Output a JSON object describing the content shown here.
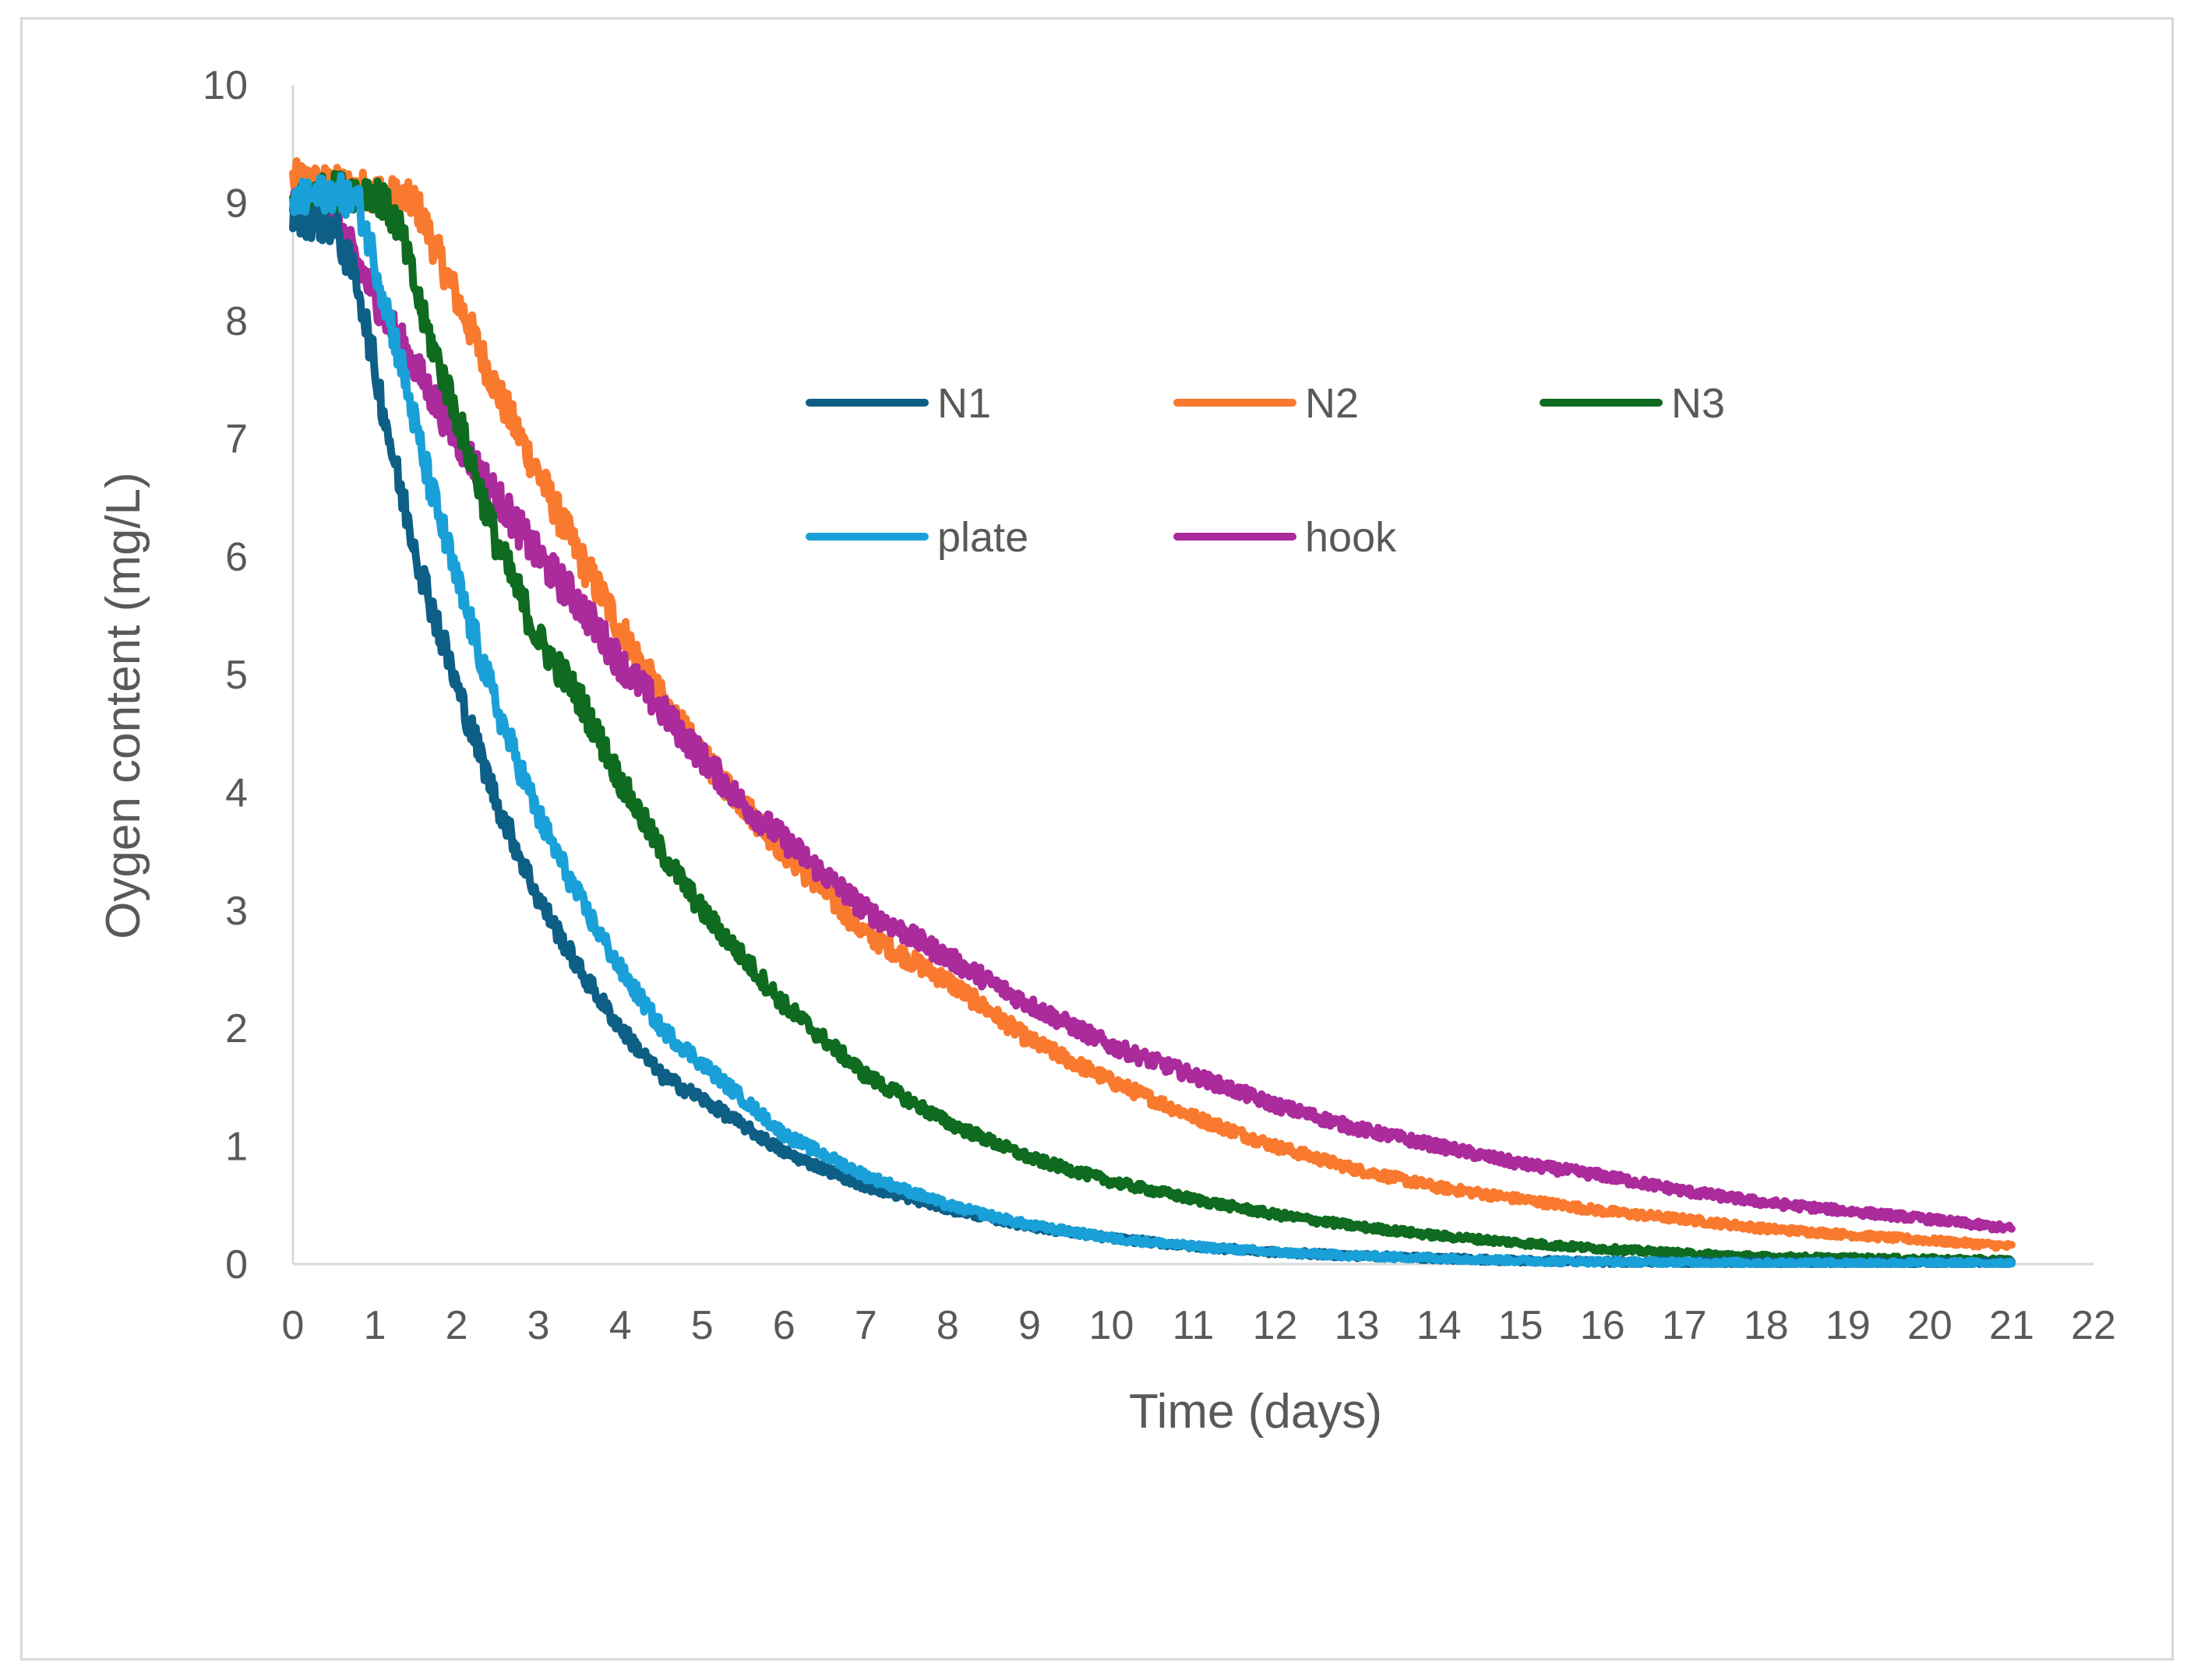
{
  "chart_data": {
    "type": "line",
    "title": "",
    "xlabel": "Time (days)",
    "ylabel": "Oygen content (mg/L)",
    "xlim": [
      0,
      22
    ],
    "ylim": [
      0,
      10
    ],
    "xticks": [
      "0",
      "1",
      "2",
      "3",
      "4",
      "5",
      "6",
      "7",
      "8",
      "9",
      "10",
      "11",
      "12",
      "13",
      "14",
      "15",
      "16",
      "17",
      "18",
      "19",
      "20",
      "21",
      "22"
    ],
    "yticks": [
      "0",
      "1",
      "2",
      "3",
      "4",
      "5",
      "6",
      "7",
      "8",
      "9",
      "10"
    ],
    "grid": false,
    "legend_position": "inside-top",
    "series": [
      {
        "name": "N1",
        "color": "#0e5f86",
        "x": [
          0,
          0.5,
          0.8,
          1.0,
          1.3,
          1.6,
          2.0,
          2.5,
          3.0,
          3.5,
          4.0,
          4.5,
          5.0,
          6.0,
          7.0,
          8.0,
          9.0,
          10.0,
          11.0,
          12.0,
          13.0,
          14.0,
          15.0,
          16.0,
          17.0,
          18.0,
          19.0,
          20.0,
          21.0
        ],
        "y": [
          8.9,
          8.8,
          8.3,
          7.6,
          6.6,
          5.8,
          4.9,
          3.9,
          3.1,
          2.5,
          2.0,
          1.6,
          1.4,
          0.95,
          0.66,
          0.47,
          0.32,
          0.22,
          0.15,
          0.1,
          0.07,
          0.05,
          0.03,
          0.02,
          0.015,
          0.01,
          0.01,
          0.01,
          0.01
        ]
      },
      {
        "name": "N2",
        "color": "#f97a2e",
        "x": [
          0,
          1.0,
          1.5,
          2.0,
          2.5,
          3.0,
          3.5,
          4.0,
          4.5,
          5.0,
          5.5,
          6.0,
          7.0,
          8.0,
          9.0,
          10.0,
          11.0,
          12.0,
          13.0,
          14.0,
          15.0,
          16.0,
          17.0,
          18.0,
          19.0,
          20.0,
          21.0
        ],
        "y": [
          9.2,
          9.1,
          9.0,
          8.2,
          7.4,
          6.7,
          6.0,
          5.4,
          4.8,
          4.3,
          3.9,
          3.5,
          2.8,
          2.4,
          1.9,
          1.55,
          1.25,
          1.0,
          0.8,
          0.65,
          0.55,
          0.45,
          0.38,
          0.3,
          0.25,
          0.2,
          0.15
        ]
      },
      {
        "name": "N3",
        "color": "#0e6b1f",
        "x": [
          0,
          0.5,
          1.0,
          1.3,
          1.6,
          2.0,
          2.5,
          3.0,
          3.5,
          4.0,
          4.5,
          5.0,
          5.5,
          6.0,
          7.0,
          8.0,
          9.0,
          10.0,
          11.0,
          12.0,
          13.0,
          14.0,
          15.0,
          16.0,
          17.0,
          18.0,
          19.0,
          20.0,
          21.0
        ],
        "y": [
          9.0,
          9.1,
          9.1,
          8.8,
          8.0,
          7.2,
          6.1,
          5.3,
          4.8,
          4.1,
          3.5,
          3.0,
          2.6,
          2.2,
          1.6,
          1.2,
          0.9,
          0.7,
          0.55,
          0.42,
          0.32,
          0.24,
          0.18,
          0.13,
          0.09,
          0.06,
          0.05,
          0.04,
          0.03
        ]
      },
      {
        "name": "plate",
        "color": "#1aa0d8",
        "x": [
          0,
          0.5,
          0.8,
          1.0,
          1.3,
          1.6,
          2.0,
          2.5,
          3.0,
          3.5,
          4.0,
          4.5,
          5.0,
          6.0,
          7.0,
          8.0,
          9.0,
          10.0,
          11.0,
          12.0,
          13.0,
          14.0,
          15.0,
          16.0,
          17.0,
          18.0,
          19.0,
          20.0,
          21.0
        ],
        "y": [
          9.0,
          9.1,
          9.0,
          8.5,
          7.7,
          6.8,
          5.8,
          4.7,
          3.8,
          3.1,
          2.5,
          2.0,
          1.7,
          1.1,
          0.75,
          0.5,
          0.33,
          0.22,
          0.15,
          0.1,
          0.07,
          0.05,
          0.03,
          0.02,
          0.015,
          0.01,
          0.01,
          0.01,
          0.01
        ]
      },
      {
        "name": "hook",
        "color": "#ab2a9c",
        "x": [
          0,
          0.5,
          1.0,
          1.5,
          2.0,
          2.5,
          3.0,
          3.5,
          4.0,
          4.5,
          5.0,
          5.5,
          6.0,
          7.0,
          8.0,
          9.0,
          10.0,
          11.0,
          12.0,
          13.0,
          14.0,
          15.0,
          16.0,
          17.0,
          18.0,
          19.0,
          20.0,
          21.0
        ],
        "y": [
          9.0,
          8.9,
          8.2,
          7.6,
          7.0,
          6.5,
          6.0,
          5.6,
          5.1,
          4.7,
          4.3,
          3.9,
          3.6,
          3.0,
          2.6,
          2.2,
          1.85,
          1.6,
          1.35,
          1.15,
          1.0,
          0.85,
          0.75,
          0.62,
          0.52,
          0.45,
          0.38,
          0.3
        ]
      }
    ]
  }
}
